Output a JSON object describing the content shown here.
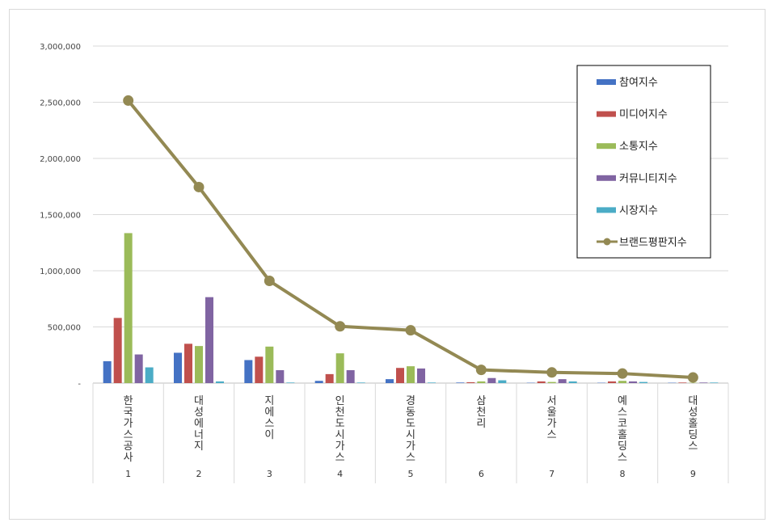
{
  "chart_data": {
    "type": "bar",
    "title": "",
    "xlabel": "",
    "ylabel": "",
    "ylim": [
      0,
      3000000
    ],
    "y_ticks": [
      "-",
      "500,000",
      "1,000,000",
      "1,500,000",
      "2,000,000",
      "2,500,000",
      "3,000,000"
    ],
    "grid": true,
    "legend_position": "top-right",
    "categories": [
      {
        "name": "한국가스공사",
        "rank": "1"
      },
      {
        "name": "대성에너지",
        "rank": "2"
      },
      {
        "name": "지에스이",
        "rank": "3"
      },
      {
        "name": "인천도시가스",
        "rank": "4"
      },
      {
        "name": "경동도시가스",
        "rank": "5"
      },
      {
        "name": "삼천리",
        "rank": "6"
      },
      {
        "name": "서울가스",
        "rank": "7"
      },
      {
        "name": "예스코홀딩스",
        "rank": "8"
      },
      {
        "name": "대성홀딩스",
        "rank": "9"
      }
    ],
    "series": [
      {
        "name": "참여지수",
        "type": "bar",
        "color": "#4472c4",
        "values": [
          195000,
          270000,
          205000,
          20000,
          35000,
          5000,
          3000,
          3000,
          3000
        ]
      },
      {
        "name": "미디어지수",
        "type": "bar",
        "color": "#c0504d",
        "values": [
          580000,
          350000,
          235000,
          80000,
          135000,
          8000,
          15000,
          15000,
          5000
        ]
      },
      {
        "name": "소통지수",
        "type": "bar",
        "color": "#9bbb59",
        "values": [
          1335000,
          330000,
          325000,
          265000,
          150000,
          15000,
          10000,
          20000,
          3000
        ]
      },
      {
        "name": "커뮤니티지수",
        "type": "bar",
        "color": "#8064a2",
        "values": [
          255000,
          765000,
          115000,
          115000,
          130000,
          45000,
          35000,
          15000,
          5000
        ]
      },
      {
        "name": "시장지수",
        "type": "bar",
        "color": "#4bacc6",
        "values": [
          140000,
          15000,
          5000,
          5000,
          5000,
          25000,
          15000,
          10000,
          5000
        ]
      },
      {
        "name": "브랜드평판지수",
        "type": "line",
        "color": "#938953",
        "values": [
          2515000,
          1745000,
          910000,
          505000,
          470000,
          118000,
          95000,
          85000,
          50000
        ]
      }
    ]
  }
}
